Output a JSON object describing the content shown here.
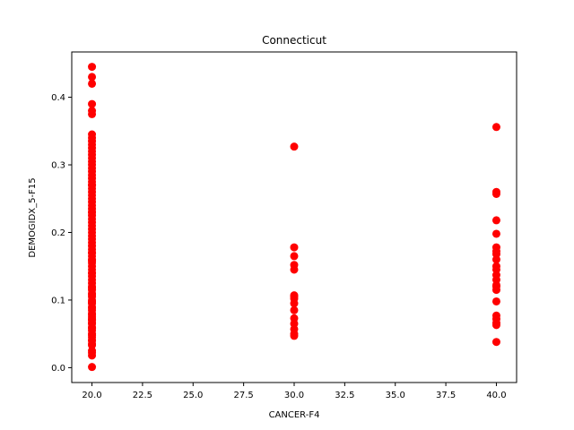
{
  "chart_data": {
    "type": "scatter",
    "title": "Connecticut",
    "xlabel": "CANCER-F4",
    "ylabel": "DEMOGIDX_5-F15",
    "xlim": [
      19.0,
      41.0
    ],
    "ylim": [
      -0.022,
      0.467
    ],
    "xticks": [
      20.0,
      22.5,
      25.0,
      27.5,
      30.0,
      32.5,
      35.0,
      37.5,
      40.0
    ],
    "xtick_labels": [
      "20.0",
      "22.5",
      "25.0",
      "27.5",
      "30.0",
      "32.5",
      "35.0",
      "37.5",
      "40.0"
    ],
    "yticks": [
      0.0,
      0.1,
      0.2,
      0.3,
      0.4
    ],
    "ytick_labels": [
      "0.0",
      "0.1",
      "0.2",
      "0.3",
      "0.4"
    ],
    "marker_color": "#ff0000",
    "grid": false,
    "series": [
      {
        "x": [
          20,
          20,
          20,
          20,
          20,
          20,
          20,
          20,
          20,
          20,
          20,
          20,
          20,
          20,
          20,
          20,
          20,
          20,
          20,
          20,
          20,
          20,
          20,
          20,
          20,
          20,
          20,
          20,
          20,
          20,
          20,
          20,
          20,
          20,
          20,
          20,
          20,
          20,
          20,
          20,
          20,
          20,
          20,
          20,
          20,
          20,
          20,
          20,
          20,
          20,
          20,
          20,
          20,
          20,
          20,
          20,
          20,
          20,
          20,
          20,
          20,
          20,
          20,
          20,
          20,
          20,
          20,
          20,
          20,
          20,
          20,
          20,
          20,
          20,
          20,
          20,
          20,
          20,
          20,
          20,
          20,
          20,
          20,
          20,
          20,
          20,
          20,
          20,
          20,
          20,
          30,
          30,
          30,
          30,
          30,
          30,
          30,
          30,
          30,
          30,
          30,
          30,
          30,
          30,
          30,
          40,
          40,
          40,
          40,
          40,
          40,
          40,
          40,
          40,
          40,
          40,
          40,
          40,
          40,
          40,
          40,
          40,
          40,
          40,
          40,
          40,
          40
        ],
        "y": [
          0.445,
          0.43,
          0.42,
          0.39,
          0.38,
          0.375,
          0.345,
          0.34,
          0.335,
          0.33,
          0.325,
          0.32,
          0.315,
          0.305,
          0.3,
          0.295,
          0.29,
          0.285,
          0.28,
          0.275,
          0.27,
          0.265,
          0.26,
          0.255,
          0.25,
          0.245,
          0.24,
          0.235,
          0.23,
          0.225,
          0.22,
          0.215,
          0.21,
          0.205,
          0.2,
          0.195,
          0.19,
          0.185,
          0.18,
          0.175,
          0.17,
          0.165,
          0.16,
          0.155,
          0.15,
          0.145,
          0.14,
          0.135,
          0.13,
          0.125,
          0.12,
          0.115,
          0.11,
          0.105,
          0.1,
          0.095,
          0.09,
          0.085,
          0.08,
          0.075,
          0.07,
          0.065,
          0.06,
          0.055,
          0.05,
          0.045,
          0.04,
          0.035,
          0.025,
          0.018,
          0.001,
          0.31,
          0.27,
          0.23,
          0.17,
          0.14,
          0.108,
          0.096,
          0.088,
          0.078,
          0.066,
          0.058,
          0.048,
          0.041,
          0.033,
          0.022,
          0.158,
          0.118,
          0.098,
          0.072,
          0.327,
          0.178,
          0.165,
          0.152,
          0.145,
          0.107,
          0.102,
          0.095,
          0.085,
          0.073,
          0.065,
          0.057,
          0.05,
          0.047,
          0.105,
          0.356,
          0.26,
          0.257,
          0.218,
          0.198,
          0.178,
          0.172,
          0.16,
          0.15,
          0.145,
          0.137,
          0.13,
          0.12,
          0.115,
          0.098,
          0.077,
          0.072,
          0.066,
          0.063,
          0.038,
          0.168,
          0.122
        ]
      }
    ]
  }
}
